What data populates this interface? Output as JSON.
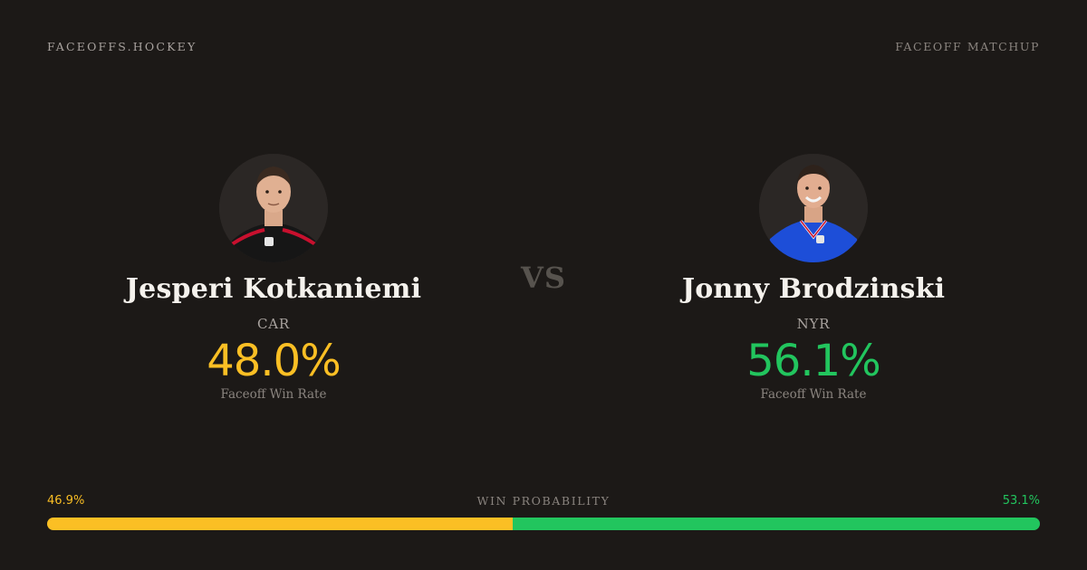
{
  "header": {
    "brand": "FACEOFFS.HOCKEY",
    "tag": "FACEOFF MATCHUP"
  },
  "player_left": {
    "name": "Jesperi Kotkaniemi",
    "team": "CAR",
    "rate": "48.0%",
    "rate_label": "Faceoff Win Rate",
    "accent_color": "#fbbf24",
    "jersey_color": "#1a1a1a"
  },
  "player_right": {
    "name": "Jonny Brodzinski",
    "team": "NYR",
    "rate": "56.1%",
    "rate_label": "Faceoff Win Rate",
    "accent_color": "#22c55e",
    "jersey_color": "#1d4ed8"
  },
  "vs": "VS",
  "probability": {
    "title": "WIN PROBABILITY",
    "left_text": "46.9%",
    "right_text": "53.1%",
    "left_fraction": 0.469,
    "right_fraction": 0.531
  }
}
